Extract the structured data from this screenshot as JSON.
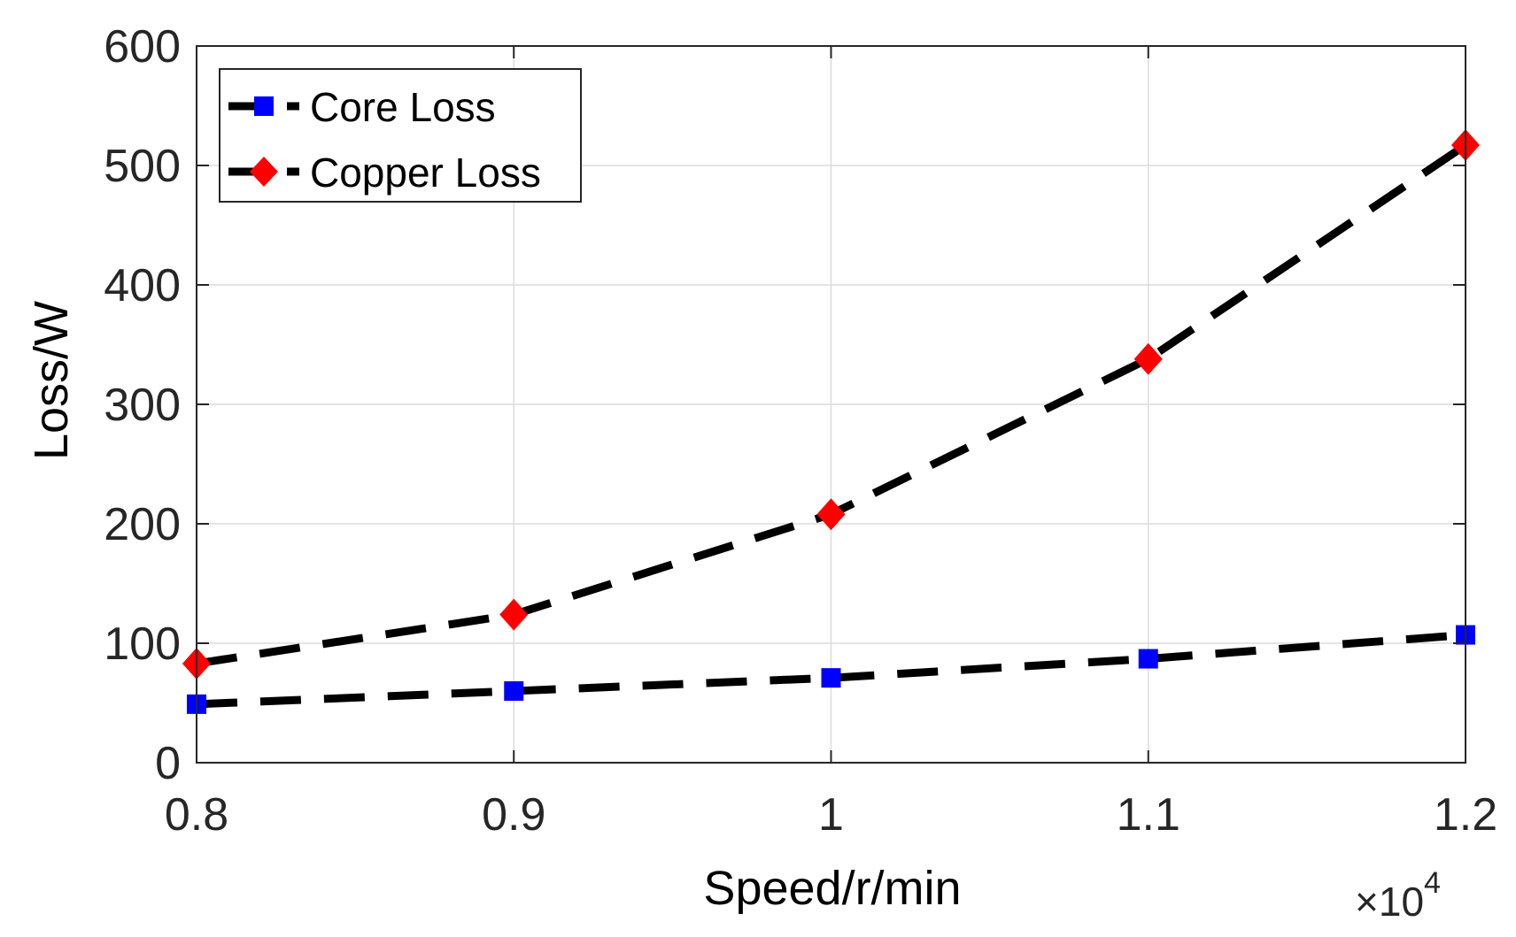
{
  "chart_data": {
    "type": "line",
    "title": "",
    "xlabel": "Speed/r/min",
    "ylabel": "Loss/W",
    "x_multiplier_prefix": "×10",
    "x_multiplier_exponent": "4",
    "x": [
      0.8,
      0.9,
      1.0,
      1.1,
      1.2
    ],
    "xlim": [
      0.8,
      1.2
    ],
    "ylim": [
      0,
      600
    ],
    "xticks": [
      0.8,
      0.9,
      1.0,
      1.1,
      1.2
    ],
    "xtick_labels": [
      "0.8",
      "0.9",
      "1",
      "1.1",
      "1.2"
    ],
    "yticks": [
      0,
      100,
      200,
      300,
      400,
      500,
      600
    ],
    "ytick_labels": [
      "0",
      "100",
      "200",
      "300",
      "400",
      "500",
      "600"
    ],
    "grid": true,
    "legend_position": "top-left",
    "series": [
      {
        "name": "Core Loss",
        "values": [
          49,
          60,
          71,
          87,
          107
        ],
        "marker": "square",
        "marker_color": "#0000ff",
        "line_color": "#000000",
        "line_style": "dashed"
      },
      {
        "name": "Copper Loss",
        "values": [
          83,
          124,
          208,
          338,
          517
        ],
        "marker": "diamond",
        "marker_color": "#ff0000",
        "line_color": "#000000",
        "line_style": "dashed"
      }
    ]
  }
}
